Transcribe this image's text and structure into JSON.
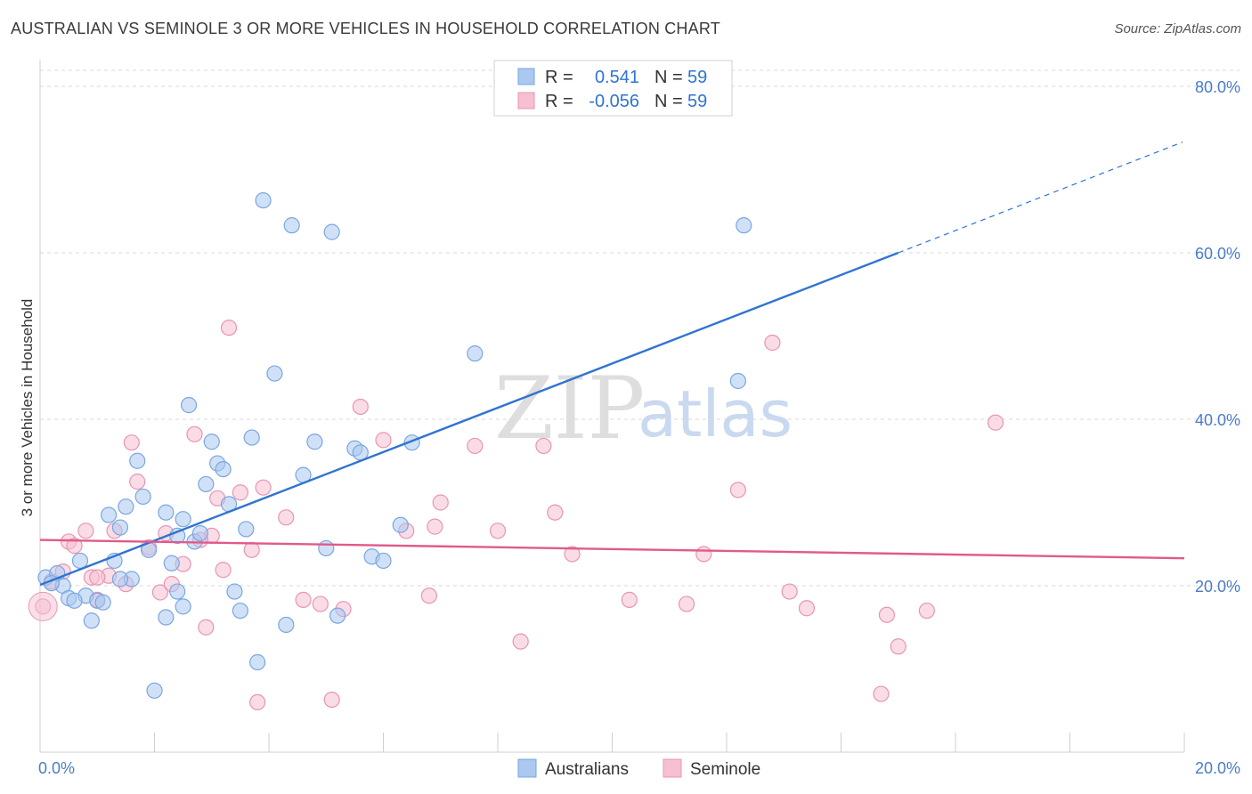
{
  "title": "AUSTRALIAN VS SEMINOLE 3 OR MORE VEHICLES IN HOUSEHOLD CORRELATION CHART",
  "source": "Source: ZipAtlas.com",
  "watermark": {
    "zip": "ZIP",
    "atlas": "atlas"
  },
  "colors": {
    "blue_fill": "#aac8f0",
    "blue_stroke": "#7aa6e0",
    "blue_line": "#2f74d0",
    "pink_fill": "#f6bfd2",
    "pink_stroke": "#e895b3",
    "pink_line": "#e05a8a",
    "grid": "#d8d8d8",
    "tick_text": "#4a7cc9"
  },
  "legend": {
    "r_label": "R =",
    "n_label": "N =",
    "rows": [
      {
        "r": "0.541",
        "n": "59"
      },
      {
        "r": "-0.056",
        "n": "59"
      }
    ]
  },
  "chart_data": {
    "type": "scatter",
    "title": "AUSTRALIAN VS SEMINOLE 3 OR MORE VEHICLES IN HOUSEHOLD CORRELATION CHART",
    "xlabel": "",
    "ylabel": "3 or more Vehicles in Household",
    "xlim": [
      0,
      20
    ],
    "ylim": [
      0,
      80
    ],
    "x_tick_labels": [
      "0.0%",
      "20.0%"
    ],
    "y_tick_labels": [
      "20.0%",
      "40.0%",
      "60.0%",
      "80.0%"
    ],
    "y_ticks": [
      20,
      40,
      60,
      80
    ],
    "grid": true,
    "series": [
      {
        "name": "Australians",
        "r": 0.541,
        "n": 59,
        "trend": {
          "x0": 0,
          "y0": 20.1,
          "x1": 15.0,
          "y1": 60.0,
          "dashed_to_x": 20.0,
          "dashed_to_y": 73.3
        },
        "points": [
          [
            0.1,
            21.0
          ],
          [
            0.3,
            21.5
          ],
          [
            0.4,
            20.0
          ],
          [
            0.5,
            18.5
          ],
          [
            0.7,
            23.0
          ],
          [
            0.8,
            18.8
          ],
          [
            0.9,
            15.8
          ],
          [
            1.0,
            18.2
          ],
          [
            1.1,
            18.0
          ],
          [
            1.2,
            28.5
          ],
          [
            1.3,
            23.0
          ],
          [
            1.4,
            27.0
          ],
          [
            1.5,
            29.5
          ],
          [
            1.6,
            20.8
          ],
          [
            1.8,
            30.7
          ],
          [
            1.9,
            24.3
          ],
          [
            2.0,
            7.4
          ],
          [
            2.2,
            16.2
          ],
          [
            2.3,
            22.7
          ],
          [
            2.4,
            19.3
          ],
          [
            2.5,
            17.5
          ],
          [
            2.6,
            41.7
          ],
          [
            2.7,
            25.3
          ],
          [
            2.8,
            26.3
          ],
          [
            2.9,
            32.2
          ],
          [
            3.0,
            37.3
          ],
          [
            3.1,
            34.7
          ],
          [
            3.3,
            29.8
          ],
          [
            3.4,
            19.3
          ],
          [
            3.5,
            17.0
          ],
          [
            3.6,
            26.8
          ],
          [
            3.8,
            10.8
          ],
          [
            3.9,
            66.3
          ],
          [
            4.1,
            45.5
          ],
          [
            4.3,
            15.3
          ],
          [
            4.6,
            33.3
          ],
          [
            4.8,
            37.3
          ],
          [
            5.1,
            62.5
          ],
          [
            5.2,
            16.4
          ],
          [
            5.5,
            36.5
          ],
          [
            5.6,
            36.0
          ],
          [
            5.8,
            23.5
          ],
          [
            6.0,
            23.0
          ],
          [
            6.3,
            27.3
          ],
          [
            6.5,
            37.2
          ],
          [
            7.6,
            47.9
          ],
          [
            12.3,
            63.3
          ],
          [
            12.2,
            44.6
          ],
          [
            1.4,
            20.8
          ],
          [
            2.2,
            28.8
          ],
          [
            3.2,
            34.0
          ],
          [
            4.4,
            63.3
          ],
          [
            5.0,
            24.5
          ],
          [
            2.5,
            28.0
          ],
          [
            0.2,
            20.3
          ],
          [
            0.6,
            18.2
          ],
          [
            1.7,
            35.0
          ],
          [
            3.7,
            37.8
          ],
          [
            2.4,
            26.0
          ]
        ]
      },
      {
        "name": "Seminole",
        "r": -0.056,
        "n": 59,
        "trend": {
          "x0": 0,
          "y0": 25.5,
          "x1": 20.0,
          "y1": 23.3
        },
        "points": [
          [
            0.05,
            17.5
          ],
          [
            0.2,
            20.5
          ],
          [
            0.4,
            21.7
          ],
          [
            0.5,
            25.3
          ],
          [
            0.6,
            24.8
          ],
          [
            0.8,
            26.6
          ],
          [
            0.9,
            21.0
          ],
          [
            1.0,
            18.3
          ],
          [
            1.2,
            21.2
          ],
          [
            1.3,
            26.6
          ],
          [
            1.5,
            20.2
          ],
          [
            1.6,
            37.2
          ],
          [
            1.7,
            32.5
          ],
          [
            1.9,
            24.6
          ],
          [
            2.1,
            19.2
          ],
          [
            2.2,
            26.3
          ],
          [
            2.3,
            20.2
          ],
          [
            2.5,
            22.6
          ],
          [
            2.7,
            38.2
          ],
          [
            2.9,
            15.0
          ],
          [
            3.0,
            26.0
          ],
          [
            3.1,
            30.5
          ],
          [
            3.2,
            21.9
          ],
          [
            3.3,
            51.0
          ],
          [
            3.5,
            31.2
          ],
          [
            3.7,
            24.3
          ],
          [
            3.8,
            6.0
          ],
          [
            3.9,
            31.8
          ],
          [
            4.3,
            28.2
          ],
          [
            4.6,
            18.3
          ],
          [
            4.9,
            17.8
          ],
          [
            5.1,
            6.3
          ],
          [
            5.3,
            17.2
          ],
          [
            5.6,
            41.5
          ],
          [
            6.0,
            37.5
          ],
          [
            6.4,
            26.6
          ],
          [
            6.8,
            18.8
          ],
          [
            6.9,
            27.1
          ],
          [
            7.0,
            30.0
          ],
          [
            7.6,
            36.8
          ],
          [
            8.0,
            26.6
          ],
          [
            8.4,
            13.3
          ],
          [
            8.8,
            36.8
          ],
          [
            9.0,
            28.8
          ],
          [
            9.3,
            23.8
          ],
          [
            10.3,
            18.3
          ],
          [
            11.3,
            17.8
          ],
          [
            11.6,
            23.8
          ],
          [
            12.2,
            31.5
          ],
          [
            12.8,
            49.2
          ],
          [
            13.1,
            19.3
          ],
          [
            13.4,
            17.3
          ],
          [
            14.7,
            7.0
          ],
          [
            14.8,
            16.5
          ],
          [
            15.0,
            12.7
          ],
          [
            15.5,
            17.0
          ],
          [
            16.7,
            39.6
          ],
          [
            1.0,
            21.0
          ],
          [
            2.8,
            25.5
          ]
        ]
      }
    ]
  },
  "bottom_legend": [
    "Australians",
    "Seminole"
  ]
}
